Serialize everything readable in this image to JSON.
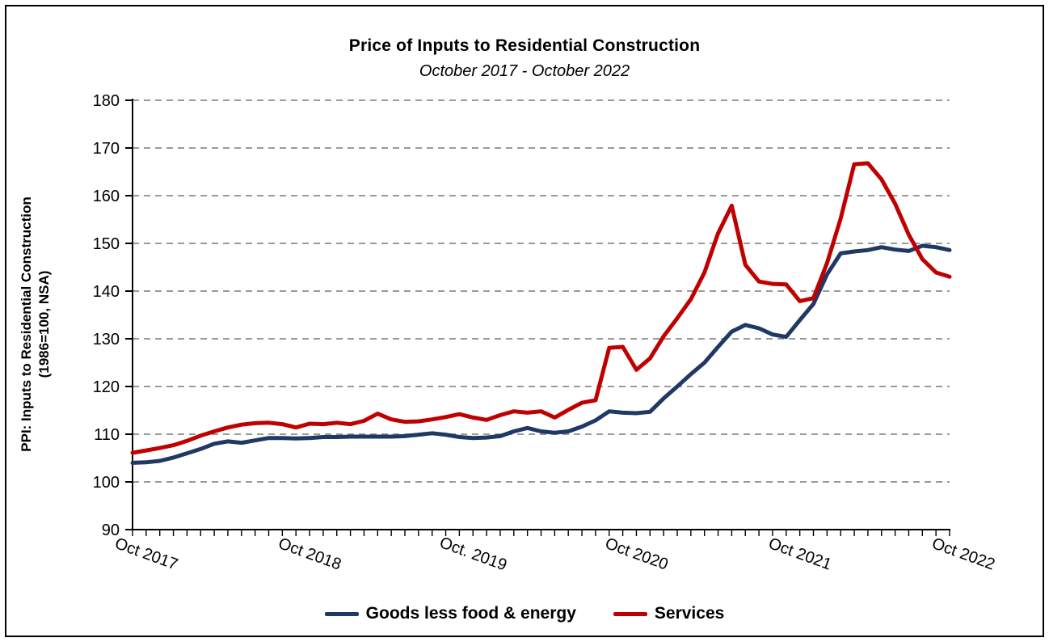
{
  "chart": {
    "title": "Price of Inputs to Residential Construction",
    "subtitle": "October 2017 - October 2022",
    "y_axis_title_line1": "PPI: Inputs to Residential Construction",
    "y_axis_title_line2": "(1986=100, NSA)"
  },
  "colors": {
    "goods_line": "#1f3864",
    "services_line": "#c00000",
    "gridline": "#8c8c8c",
    "axis": "#000000",
    "text": "#000000",
    "background": "#ffffff",
    "frame_border": "#000000"
  },
  "chart_data": {
    "type": "line",
    "title": "Price of Inputs to Residential Construction",
    "subtitle": "October 2017 - October 2022",
    "ylabel": "PPI: Inputs to Residential Construction (1986=100, NSA)",
    "xlabel": "",
    "ylim": [
      90,
      180
    ],
    "ytick_step": 10,
    "ytick_labels": [
      "90",
      "100",
      "110",
      "120",
      "130",
      "140",
      "150",
      "160",
      "170",
      "180"
    ],
    "grid": "horizontal-dashed",
    "legend_position": "bottom",
    "x_range": {
      "start": "Oct 2017",
      "end": "Oct 2022",
      "frequency": "monthly",
      "points": 61
    },
    "x_major_ticks": [
      {
        "index": 0,
        "label": "Oct 2017"
      },
      {
        "index": 12,
        "label": "Oct 2018"
      },
      {
        "index": 24,
        "label": "Oct. 2019"
      },
      {
        "index": 36,
        "label": "Oct 2020"
      },
      {
        "index": 48,
        "label": "Oct 2021"
      },
      {
        "index": 60,
        "label": "Oct 2022"
      }
    ],
    "series": [
      {
        "name": "Goods less food & energy",
        "color": "#1f3864",
        "values": [
          104.0,
          104.1,
          104.4,
          105.1,
          106.0,
          106.9,
          108.0,
          108.5,
          108.2,
          108.7,
          109.2,
          109.2,
          109.1,
          109.2,
          109.4,
          109.4,
          109.5,
          109.5,
          109.5,
          109.5,
          109.6,
          109.9,
          110.2,
          109.9,
          109.4,
          109.2,
          109.3,
          109.6,
          110.6,
          111.3,
          110.6,
          110.3,
          110.6,
          111.6,
          112.9,
          114.8,
          114.5,
          114.4,
          114.7,
          117.5,
          120.0,
          122.6,
          125.0,
          128.3,
          131.5,
          132.9,
          132.2,
          130.9,
          130.4,
          133.9,
          137.3,
          143.5,
          147.9,
          148.3,
          148.6,
          149.2,
          148.7,
          148.4,
          149.5,
          149.2,
          148.6
        ]
      },
      {
        "name": "Services",
        "color": "#c00000",
        "values": [
          106.1,
          106.6,
          107.1,
          107.7,
          108.6,
          109.7,
          110.6,
          111.4,
          112.0,
          112.3,
          112.4,
          112.1,
          111.4,
          112.2,
          112.1,
          112.4,
          112.1,
          112.8,
          114.3,
          113.1,
          112.6,
          112.7,
          113.1,
          113.6,
          114.2,
          113.5,
          113.0,
          114.0,
          114.8,
          114.5,
          114.8,
          113.5,
          115.1,
          116.6,
          117.1,
          128.1,
          128.3,
          123.5,
          125.9,
          130.5,
          134.3,
          138.3,
          143.9,
          152.1,
          157.9,
          145.5,
          142.0,
          141.5,
          141.4,
          137.9,
          138.5,
          145.9,
          155.2,
          166.6,
          166.8,
          163.4,
          158.3,
          151.8,
          146.7,
          143.9,
          143.0
        ]
      }
    ]
  }
}
